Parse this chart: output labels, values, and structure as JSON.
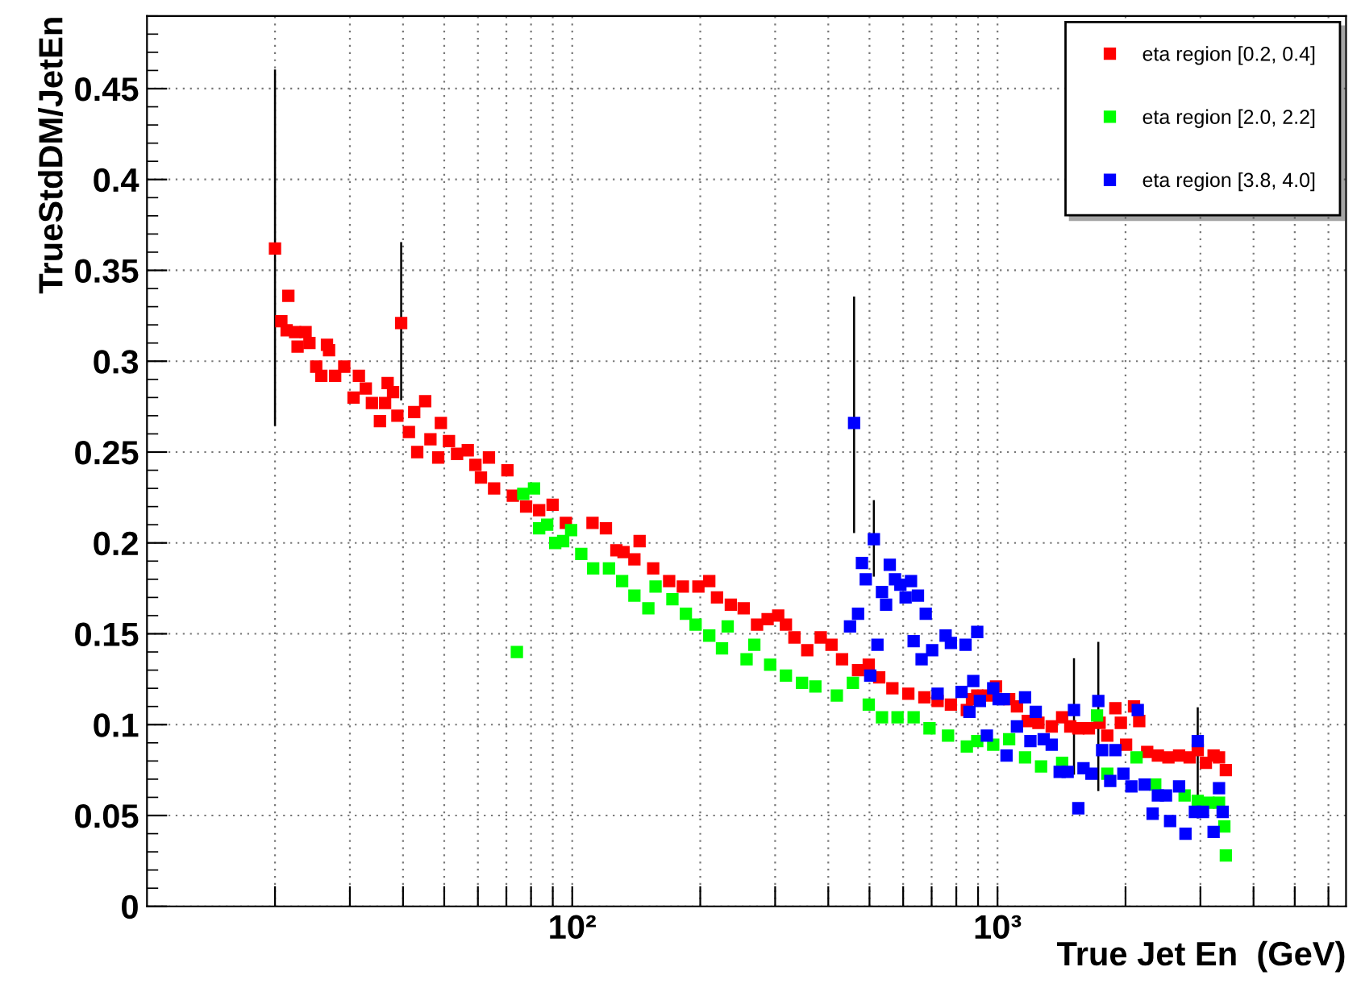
{
  "chart_data": {
    "type": "scatter",
    "xlabel": "True Jet En  (GeV)",
    "ylabel": "TrueStdDM/JetEn",
    "log": "x",
    "grid": true,
    "legend": "top right",
    "marker": "square",
    "xlim": [
      10,
      6600
    ],
    "ylim": [
      0,
      0.49
    ],
    "xticks": [
      {
        "value": 20,
        "label": null
      },
      {
        "value": 30,
        "label": null
      },
      {
        "value": 40,
        "label": null
      },
      {
        "value": 50,
        "label": null
      },
      {
        "value": 60,
        "label": null
      },
      {
        "value": 70,
        "label": null
      },
      {
        "value": 80,
        "label": null
      },
      {
        "value": 90,
        "label": null
      },
      {
        "value": 100,
        "label": "10²"
      },
      {
        "value": 200,
        "label": null
      },
      {
        "value": 300,
        "label": null
      },
      {
        "value": 400,
        "label": null
      },
      {
        "value": 500,
        "label": null
      },
      {
        "value": 600,
        "label": null
      },
      {
        "value": 700,
        "label": null
      },
      {
        "value": 800,
        "label": null
      },
      {
        "value": 900,
        "label": null
      },
      {
        "value": 1000,
        "label": "10³"
      },
      {
        "value": 2000,
        "label": null
      },
      {
        "value": 3000,
        "label": null
      },
      {
        "value": 4000,
        "label": null
      },
      {
        "value": 5000,
        "label": null
      },
      {
        "value": 6000,
        "label": null
      }
    ],
    "yticks": [
      0,
      0.05,
      0.1,
      0.15,
      0.2,
      0.25,
      0.3,
      0.35,
      0.4,
      0.45
    ],
    "series": [
      {
        "name": "eta region [0.2, 0.4]",
        "color": "#ff0000",
        "x": [
          20,
          20.7,
          21.5,
          21.3,
          22.3,
          23.6,
          22.6,
          24.1,
          25.0,
          26.5,
          26.8,
          25.7,
          27.7,
          29.1,
          30.6,
          31.5,
          32.7,
          33.8,
          35.3,
          36.3,
          36.8,
          37.9,
          39.6,
          38.8,
          41.3,
          42.5,
          43.2,
          45.1,
          46.4,
          49.1,
          48.4,
          51.3,
          53.6,
          56.8,
          59.2,
          61,
          63.7,
          65.5,
          70.4,
          72.5,
          77.9,
          83.6,
          89.9,
          96.6,
          111.6,
          120,
          127,
          132,
          140,
          144,
          155,
          169,
          182,
          198,
          210,
          219,
          236,
          253,
          272,
          288,
          305,
          318,
          333,
          357,
          384,
          407,
          431,
          470,
          498,
          527,
          566,
          617,
          673,
          723,
          777,
          847,
          871,
          896,
          950,
          992,
          1065,
          1111,
          1178,
          1248,
          1341,
          1419,
          1483,
          1549,
          1640,
          1738,
          1812,
          1893,
          1950,
          2006,
          2094,
          2154,
          2249,
          2383,
          2523,
          2673,
          2830,
          2957,
          3090,
          3222,
          3318,
          3443
        ],
        "values": [
          0.362,
          0.322,
          0.336,
          0.317,
          0.316,
          0.316,
          0.308,
          0.31,
          0.297,
          0.309,
          0.306,
          0.292,
          0.292,
          0.297,
          0.28,
          0.292,
          0.285,
          0.277,
          0.267,
          0.277,
          0.288,
          0.283,
          0.321,
          0.27,
          0.261,
          0.272,
          0.25,
          0.278,
          0.257,
          0.266,
          0.247,
          0.256,
          0.249,
          0.251,
          0.243,
          0.236,
          0.247,
          0.23,
          0.24,
          0.226,
          0.22,
          0.218,
          0.221,
          0.211,
          0.211,
          0.208,
          0.196,
          0.195,
          0.191,
          0.201,
          0.186,
          0.179,
          0.176,
          0.176,
          0.179,
          0.17,
          0.166,
          0.164,
          0.155,
          0.158,
          0.16,
          0.155,
          0.148,
          0.141,
          0.148,
          0.144,
          0.136,
          0.13,
          0.133,
          0.126,
          0.12,
          0.117,
          0.115,
          0.113,
          0.111,
          0.108,
          0.114,
          0.116,
          0.116,
          0.121,
          0.114,
          0.11,
          0.102,
          0.101,
          0.099,
          0.104,
          0.099,
          0.098,
          0.098,
          0.101,
          0.094,
          0.109,
          0.101,
          0.089,
          0.11,
          0.102,
          0.085,
          0.083,
          0.082,
          0.083,
          0.082,
          0.086,
          0.079,
          0.083,
          0.082,
          0.075
        ],
        "errors": [
          [
            0.265,
            0.46
          ],
          null,
          null,
          null,
          null,
          null,
          null,
          null,
          null,
          null,
          null,
          null,
          null,
          null,
          null,
          null,
          null,
          null,
          null,
          null,
          null,
          null,
          [
            0.279,
            0.365
          ],
          null,
          null,
          null,
          null,
          null,
          null,
          null,
          null,
          null,
          null,
          null,
          null,
          null,
          null,
          null,
          null,
          null,
          null,
          null,
          null,
          null,
          null,
          null,
          null,
          null,
          null,
          null,
          null,
          null,
          null,
          null,
          null,
          null,
          null,
          null,
          null,
          null,
          null,
          null,
          null,
          null,
          null,
          null,
          null,
          null,
          null,
          null,
          null,
          null,
          null,
          null,
          null,
          null,
          null,
          null,
          null,
          null,
          null,
          null,
          null,
          null,
          null,
          null,
          null,
          null,
          null,
          null,
          null,
          null,
          null,
          null,
          null,
          null,
          null,
          null,
          null,
          null,
          null,
          null,
          null,
          null,
          null,
          null
        ]
      },
      {
        "name": "eta region [2.0, 2.2]",
        "color": "#00ff00",
        "x": [
          74.1,
          76.7,
          81.3,
          83.6,
          87.3,
          91.2,
          95.2,
          99.4,
          105,
          112,
          122,
          131,
          140,
          151,
          157,
          172,
          185,
          195,
          210,
          225,
          232,
          257,
          268,
          292,
          318,
          347,
          373,
          419,
          457,
          498,
          535,
          582,
          635,
          692,
          765,
          847,
          896,
          977,
          1065,
          1161,
          1266,
          1419,
          1549,
          1714,
          1812,
          1950,
          2123,
          2218,
          2349,
          2523,
          2754,
          2957,
          3133,
          3318,
          3415,
          3443
        ],
        "values": [
          0.14,
          0.227,
          0.23,
          0.208,
          0.21,
          0.2,
          0.201,
          0.207,
          0.194,
          0.186,
          0.186,
          0.179,
          0.171,
          0.164,
          0.176,
          0.169,
          0.161,
          0.155,
          0.149,
          0.142,
          0.154,
          0.136,
          0.144,
          0.133,
          0.127,
          0.123,
          0.121,
          0.116,
          0.123,
          0.111,
          0.104,
          0.104,
          0.104,
          0.098,
          0.094,
          0.088,
          0.091,
          0.089,
          0.092,
          0.082,
          0.077,
          0.079,
          null,
          0.105,
          0.073,
          null,
          0.082,
          null,
          0.067,
          null,
          0.061,
          0.058,
          0.057,
          0.057,
          0.044,
          0.028
        ]
      },
      {
        "name": "eta region [3.8, 4.0]",
        "color": "#0000ff",
        "x": [
          450,
          460,
          470,
          480,
          490,
          502,
          512,
          522,
          535,
          547,
          558,
          574,
          591,
          608,
          626,
          635,
          650,
          663,
          678,
          702,
          723,
          755,
          777,
          823,
          841,
          859,
          877,
          896,
          909,
          944,
          977,
          1006,
          1035,
          1050,
          1111,
          1161,
          1195,
          1230,
          1284,
          1341,
          1400,
          1462,
          1513,
          1549,
          1593,
          1663,
          1726,
          1762,
          1841,
          1893,
          1977,
          2065,
          2137,
          2218,
          2316,
          2383,
          2490,
          2546,
          2673,
          2767,
          2912,
          2957,
          3042,
          3222,
          3318,
          3384
        ],
        "values": [
          0.154,
          0.266,
          0.161,
          0.189,
          0.18,
          0.127,
          0.202,
          0.144,
          0.173,
          0.166,
          0.188,
          0.18,
          0.177,
          0.17,
          0.179,
          0.146,
          0.171,
          0.136,
          0.161,
          0.141,
          0.117,
          0.149,
          0.145,
          0.118,
          0.144,
          0.107,
          0.124,
          0.151,
          0.113,
          0.094,
          0.12,
          0.114,
          0.114,
          0.083,
          0.099,
          0.115,
          0.091,
          0.107,
          0.092,
          0.089,
          0.074,
          0.074,
          0.108,
          0.054,
          0.076,
          0.073,
          0.113,
          0.086,
          0.069,
          0.086,
          0.073,
          0.066,
          0.108,
          0.067,
          0.051,
          0.061,
          0.061,
          0.047,
          0.066,
          0.04,
          0.052,
          0.091,
          0.052,
          0.041,
          0.065,
          0.052
        ],
        "errors": [
          null,
          [
            0.206,
            0.335
          ],
          null,
          null,
          null,
          null,
          [
            0.182,
            0.223
          ],
          null,
          null,
          null,
          null,
          null,
          null,
          null,
          null,
          null,
          null,
          null,
          null,
          null,
          null,
          null,
          null,
          null,
          null,
          null,
          null,
          null,
          null,
          null,
          null,
          null,
          null,
          null,
          null,
          null,
          null,
          null,
          null,
          null,
          null,
          null,
          [
            0.073,
            0.136
          ],
          null,
          null,
          null,
          [
            0.064,
            0.145
          ],
          null,
          null,
          null,
          null,
          null,
          null,
          null,
          null,
          null,
          null,
          null,
          null,
          null,
          null,
          [
            0.049,
            0.109
          ],
          null,
          null,
          null,
          null
        ]
      }
    ]
  }
}
